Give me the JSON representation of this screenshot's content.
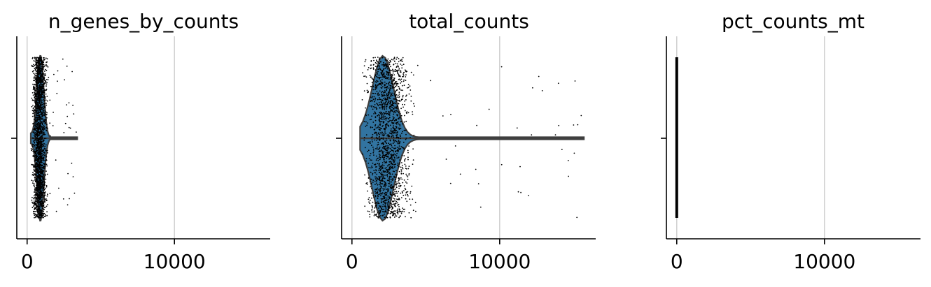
{
  "chart_data": [
    {
      "type": "violin",
      "title": "n_genes_by_counts",
      "xlabel": "",
      "ylabel": "",
      "xlim": [
        -700,
        16500
      ],
      "xticks": [
        0,
        10000
      ],
      "tick_labels": [
        "0",
        "10000"
      ],
      "grid": "x",
      "violin_color": "#3274a1",
      "points_color": "#000000",
      "summary": {
        "min": 250,
        "q1": 700,
        "median": 900,
        "q3": 1100,
        "max": 3400
      },
      "jitter_range": [
        250,
        1500
      ]
    },
    {
      "type": "violin",
      "title": "total_counts",
      "xlabel": "",
      "ylabel": "",
      "xlim": [
        -700,
        16500
      ],
      "xticks": [
        0,
        10000
      ],
      "tick_labels": [
        "0",
        "10000"
      ],
      "grid": "x",
      "violin_color": "#3274a1",
      "points_color": "#000000",
      "summary": {
        "min": 550,
        "q1": 1500,
        "median": 2100,
        "q3": 2800,
        "max": 15700
      },
      "jitter_range": [
        550,
        4500
      ]
    },
    {
      "type": "violin",
      "title": "pct_counts_mt",
      "xlabel": "",
      "ylabel": "",
      "xlim": [
        -700,
        16500
      ],
      "xticks": [
        0,
        10000
      ],
      "tick_labels": [
        "0",
        "10000"
      ],
      "grid": "x",
      "violin_color": "#3274a1",
      "points_color": "#000000",
      "summary": {
        "min": 0,
        "q1": 0,
        "median": 0,
        "q3": 0,
        "max": 0
      },
      "jitter_range": [
        0,
        0
      ]
    }
  ]
}
